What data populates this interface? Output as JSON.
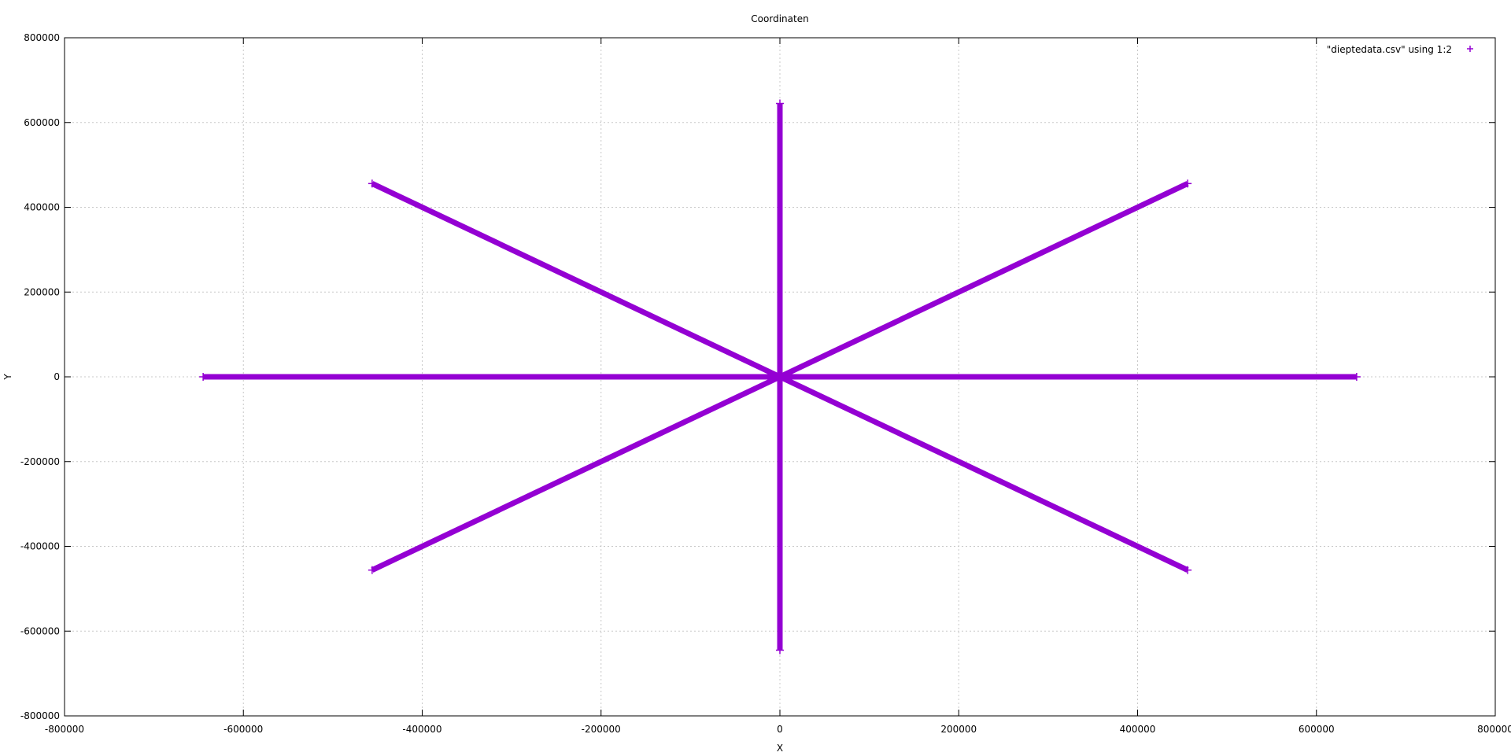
{
  "chart_data": {
    "type": "scatter",
    "title": "Coordinaten",
    "xlabel": "X",
    "ylabel": "Y",
    "xlim": [
      -800000,
      800000
    ],
    "ylim": [
      -800000,
      800000
    ],
    "xticks": [
      -800000,
      -600000,
      -400000,
      -200000,
      0,
      200000,
      400000,
      600000,
      800000
    ],
    "yticks": [
      -800000,
      -600000,
      -400000,
      -200000,
      0,
      200000,
      400000,
      600000,
      800000
    ],
    "grid": true,
    "legend_position": "top-right",
    "marker": "+",
    "color": "#9400d3",
    "series": [
      {
        "name": "\"dieptedata.csv\" using 1:2",
        "segments": [
          {
            "from": [
              0,
              0
            ],
            "to": [
              645000,
              0
            ]
          },
          {
            "from": [
              0,
              0
            ],
            "to": [
              456000,
              456000
            ]
          },
          {
            "from": [
              0,
              0
            ],
            "to": [
              0,
              645000
            ]
          },
          {
            "from": [
              0,
              0
            ],
            "to": [
              -456000,
              456000
            ]
          },
          {
            "from": [
              0,
              0
            ],
            "to": [
              -645000,
              0
            ]
          },
          {
            "from": [
              0,
              0
            ],
            "to": [
              -456000,
              -456000
            ]
          },
          {
            "from": [
              0,
              0
            ],
            "to": [
              0,
              -645000
            ]
          },
          {
            "from": [
              0,
              0
            ],
            "to": [
              456000,
              -456000
            ]
          }
        ]
      }
    ]
  }
}
